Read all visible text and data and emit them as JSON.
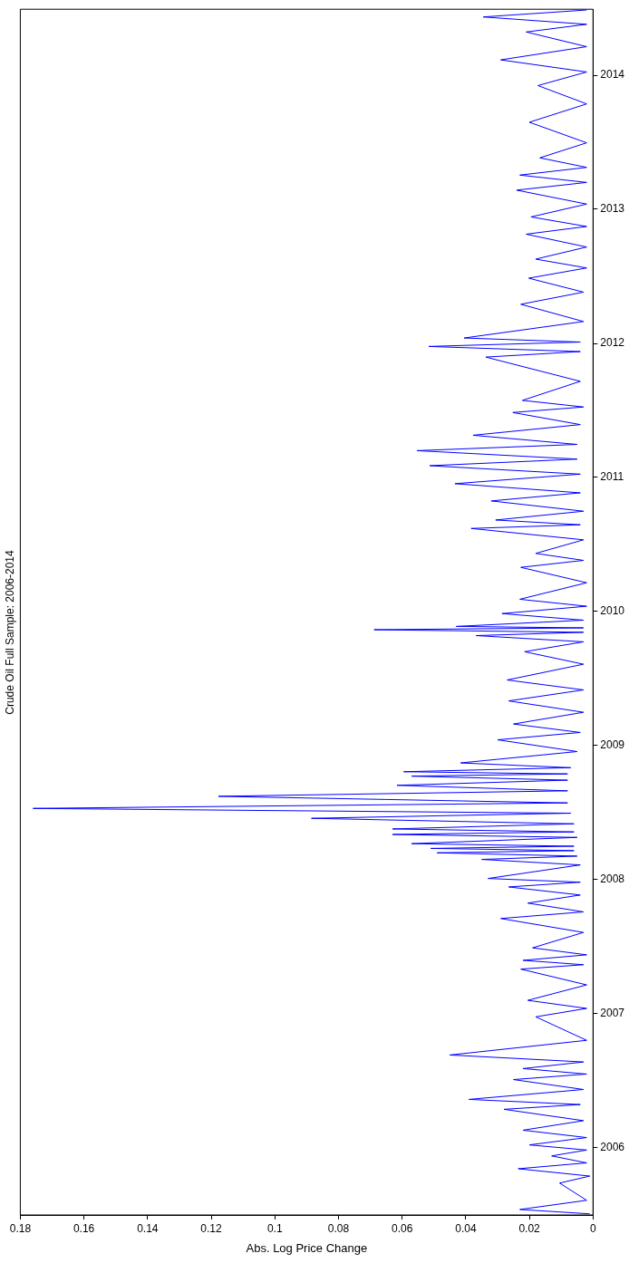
{
  "chart_data": {
    "type": "line",
    "orientation": "horizontal",
    "title": "Crude Oil Full Sample: 2006-2014",
    "xlabel": "Abs. Log Price Change",
    "ylim": [
      "2005-07-01",
      "2014-06-30"
    ],
    "yticks": [
      "2006",
      "2007",
      "2008",
      "2009",
      "2010",
      "2011",
      "2012",
      "2013",
      "2014"
    ],
    "xlim": [
      0.18,
      0
    ],
    "xticks": [
      0,
      0.02,
      0.04,
      0.06,
      0.08,
      0.1,
      0.12,
      0.14,
      0.16,
      0.18
    ],
    "x": [
      "2005-07-04",
      "2005-07-16",
      "2005-08-10",
      "2005-09-26",
      "2005-10-15",
      "2005-11-04",
      "2005-11-20",
      "2005-12-09",
      "2005-12-25",
      "2006-01-08",
      "2006-01-28",
      "2006-02-17",
      "2006-03-15",
      "2006-04-15",
      "2006-04-28",
      "2006-05-12",
      "2006-06-08",
      "2006-07-05",
      "2006-07-20",
      "2006-08-04",
      "2006-08-22",
      "2006-09-10",
      "2006-10-20",
      "2006-12-23",
      "2007-01-15",
      "2007-02-06",
      "2007-03-20",
      "2007-05-02",
      "2007-05-14",
      "2007-05-26",
      "2007-06-10",
      "2007-06-29",
      "2007-08-10",
      "2007-09-17",
      "2007-10-05",
      "2007-10-29",
      "2007-11-20",
      "2007-12-12",
      "2007-12-25",
      "2008-01-04",
      "2008-02-10",
      "2008-02-25",
      "2008-03-05",
      "2008-03-14",
      "2008-03-20",
      "2008-03-26",
      "2008-04-01",
      "2008-04-08",
      "2008-04-25",
      "2008-05-03",
      "2008-05-10",
      "2008-05-18",
      "2008-06-01",
      "2008-06-16",
      "2008-06-30",
      "2008-07-13",
      "2008-07-28",
      "2008-08-15",
      "2008-08-30",
      "2008-09-14",
      "2008-09-28",
      "2008-10-09",
      "2008-10-15",
      "2008-10-21",
      "2008-11-01",
      "2008-11-14",
      "2008-12-15",
      "2009-01-16",
      "2009-02-05",
      "2009-02-28",
      "2009-04-01",
      "2009-05-02",
      "2009-06-01",
      "2009-06-28",
      "2009-08-10",
      "2009-09-13",
      "2009-10-10",
      "2009-10-27",
      "2009-11-05",
      "2009-11-12",
      "2009-11-17",
      "2009-11-21",
      "2009-12-08",
      "2009-12-26",
      "2010-01-15",
      "2010-02-03",
      "2010-03-20",
      "2010-05-01",
      "2010-05-20",
      "2010-06-08",
      "2010-07-15",
      "2010-08-15",
      "2010-08-25",
      "2010-09-07",
      "2010-10-01",
      "2010-10-29",
      "2010-11-20",
      "2010-12-15",
      "2011-01-10",
      "2011-02-02",
      "2011-02-20",
      "2011-03-15",
      "2011-04-01",
      "2011-04-26",
      "2011-05-25",
      "2011-06-27",
      "2011-07-12",
      "2011-07-30",
      "2011-09-20",
      "2011-11-25",
      "2011-12-10",
      "2011-12-24",
      "2012-01-05",
      "2012-01-16",
      "2012-03-01",
      "2012-04-17",
      "2012-05-20",
      "2012-06-27",
      "2012-07-25",
      "2012-08-18",
      "2012-09-20",
      "2012-10-25",
      "2012-11-15",
      "2012-12-11",
      "2013-01-15",
      "2013-02-22",
      "2013-03-15",
      "2013-04-04",
      "2013-04-25",
      "2013-05-21",
      "2013-07-01",
      "2013-08-26",
      "2013-10-15",
      "2013-12-04",
      "2014-01-10",
      "2014-02-12",
      "2014-03-20",
      "2014-04-29",
      "2014-05-20",
      "2014-06-09",
      "2014-06-28"
    ],
    "series": [
      {
        "color": "#0000ff",
        "values": [
          0.001,
          0.023,
          0.002,
          0.0105,
          0.001,
          0.0235,
          0.002,
          0.013,
          0.002,
          0.02,
          0.002,
          0.022,
          0.003,
          0.028,
          0.004,
          0.039,
          0.003,
          0.025,
          0.002,
          0.022,
          0.003,
          0.045,
          0.002,
          0.018,
          0.002,
          0.0205,
          0.002,
          0.0227,
          0.003,
          0.022,
          0.002,
          0.019,
          0.003,
          0.029,
          0.003,
          0.0205,
          0.004,
          0.0265,
          0.004,
          0.033,
          0.004,
          0.035,
          0.005,
          0.049,
          0.006,
          0.051,
          0.006,
          0.057,
          0.005,
          0.063,
          0.006,
          0.063,
          0.006,
          0.0885,
          0.007,
          0.176,
          0.008,
          0.1177,
          0.008,
          0.0616,
          0.008,
          0.057,
          0.008,
          0.0595,
          0.007,
          0.0416,
          0.005,
          0.03,
          0.004,
          0.025,
          0.003,
          0.0265,
          0.003,
          0.027,
          0.003,
          0.0215,
          0.003,
          0.0368,
          0.003,
          0.0688,
          0.003,
          0.043,
          0.003,
          0.0286,
          0.002,
          0.023,
          0.002,
          0.0227,
          0.003,
          0.018,
          0.003,
          0.0383,
          0.004,
          0.0306,
          0.003,
          0.032,
          0.004,
          0.0434,
          0.004,
          0.0513,
          0.005,
          0.0553,
          0.005,
          0.0377,
          0.004,
          0.0252,
          0.003,
          0.0222,
          0.004,
          0.0337,
          0.004,
          0.0516,
          0.004,
          0.0405,
          0.003,
          0.0227,
          0.003,
          0.0202,
          0.002,
          0.018,
          0.002,
          0.021,
          0.002,
          0.0195,
          0.002,
          0.024,
          0.002,
          0.023,
          0.002,
          0.0167,
          0.002,
          0.02,
          0.002,
          0.0173,
          0.002,
          0.029,
          0.002,
          0.021,
          0.002,
          0.0345,
          0.002
        ]
      }
    ]
  }
}
